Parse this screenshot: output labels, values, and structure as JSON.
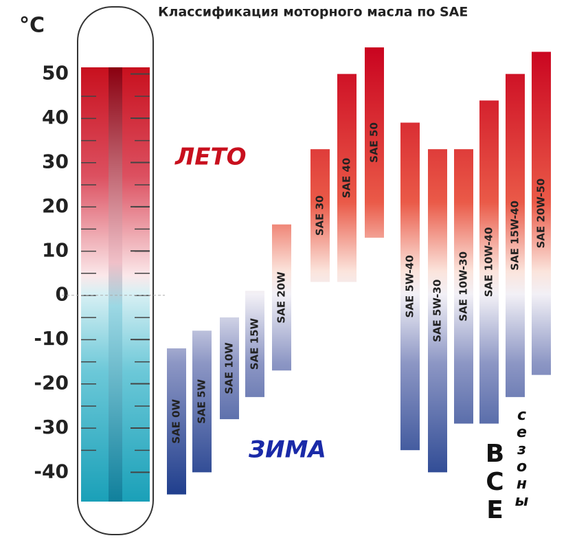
{
  "chart_data": {
    "type": "range",
    "title": "Классификация моторного масла по SAE",
    "ylabel": "°C",
    "categories": [
      "SAE 0W",
      "SAE 5W",
      "SAE 10W",
      "SAE 15W",
      "SAE 20W",
      "SAE 30",
      "SAE 40",
      "SAE 50",
      "SAE 5W-40",
      "SAE 5W-30",
      "SAE 10W-30",
      "SAE 10W-40",
      "SAE 15W-40",
      "SAE 20W-50"
    ],
    "low": [
      -45,
      -40,
      -28,
      -23,
      -17,
      3,
      3,
      13,
      -35,
      -40,
      -29,
      -29,
      -23,
      -18
    ],
    "high": [
      -12,
      -8,
      -5,
      1,
      16,
      33,
      50,
      56,
      39,
      33,
      33,
      44,
      50,
      55
    ],
    "ylim": [
      -55,
      65
    ],
    "yticks": [
      -40,
      -30,
      -20,
      -10,
      0,
      10,
      20,
      30,
      40,
      50
    ],
    "annotations": [
      "ЛЕТО",
      "ЗИМА",
      "ВСЕ",
      "сезоны"
    ]
  }
}
